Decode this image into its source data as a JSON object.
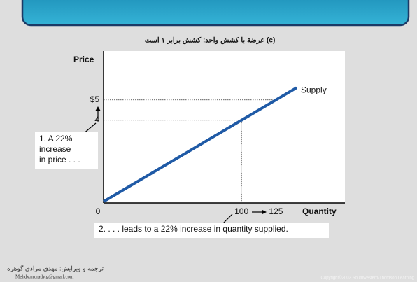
{
  "chart_data": {
    "type": "line",
    "title": "(c) عرضة با کشش واحد: کشش برابر ۱ است",
    "y_label": "Price",
    "x_label": "Quantity",
    "series": [
      {
        "name": "Supply",
        "color": "#1f5aa6",
        "x": [
          0,
          140
        ],
        "values": [
          0,
          5.6
        ]
      }
    ],
    "xlim": [
      0,
      175
    ],
    "ylim": [
      0,
      7.4
    ],
    "xticks": [
      0,
      100,
      125
    ],
    "yticks": [
      {
        "value": 4,
        "label": "4"
      },
      {
        "value": 5,
        "label": "$5"
      }
    ],
    "annotations": [
      {
        "lines": [
          "1. A 22%",
          "increase",
          "in price . . ."
        ]
      },
      {
        "lines": [
          "2. . . . leads to a 22% increase in quantity supplied."
        ]
      }
    ]
  },
  "footer": {
    "translator": "ترجمه و ویرایش: مهدی مرادی گوهره",
    "email": "Mehdy.morady.g@gmail.com",
    "copyright": "Copyright©2003  Southwestern/Thomson Learning"
  }
}
